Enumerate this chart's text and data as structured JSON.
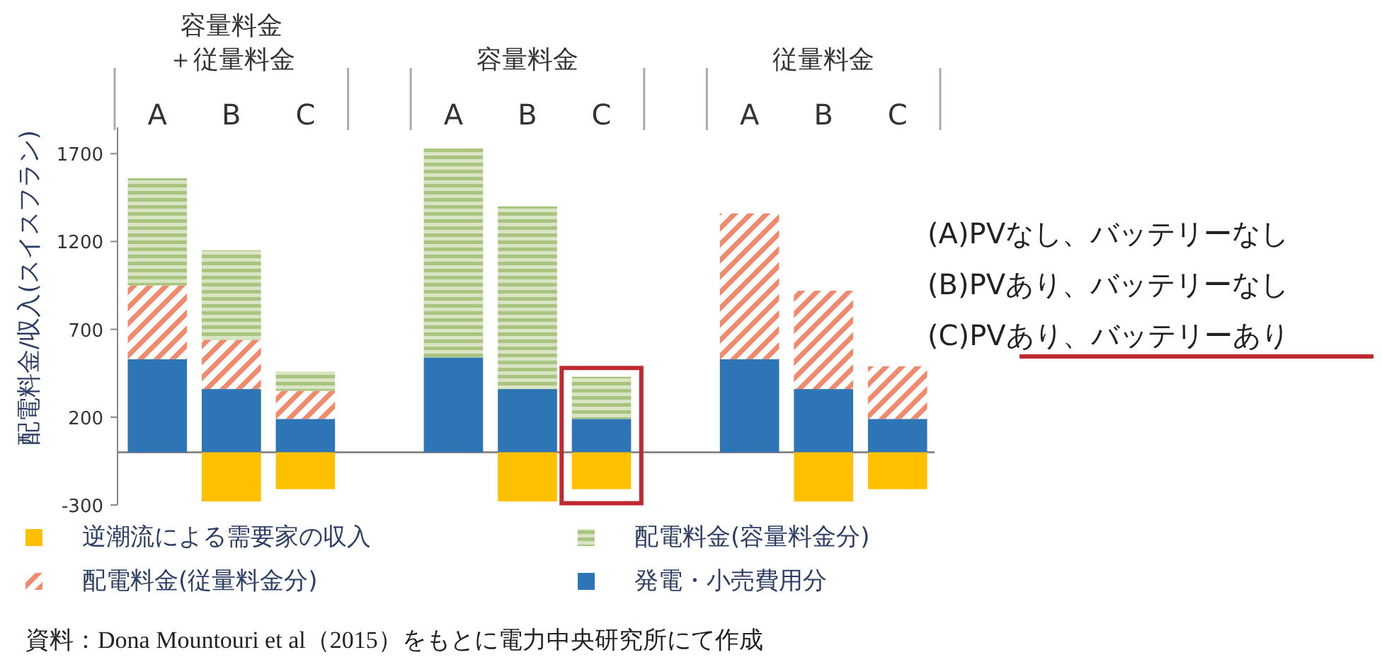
{
  "chart_data": {
    "type": "bar",
    "stacked": true,
    "ylabel": "配電料金/収入(スイスフラン)",
    "categories": [
      "A",
      "B",
      "C",
      null,
      "A",
      "B",
      "C",
      null,
      "A",
      "B",
      "C"
    ],
    "series": [
      {
        "name": "発電・小売費用分",
        "color": "#2e75b6",
        "values": [
          530,
          360,
          190,
          null,
          540,
          360,
          190,
          null,
          530,
          360,
          190
        ]
      },
      {
        "name": "配電料金(従量料金分)",
        "color": "#f08a6c",
        "values": [
          420,
          280,
          160,
          null,
          null,
          null,
          null,
          null,
          830,
          560,
          300
        ]
      },
      {
        "name": "配電料金(容量料金分)",
        "color": "#a9c47f",
        "values": [
          610,
          510,
          110,
          null,
          1190,
          1040,
          240,
          null,
          null,
          null,
          null
        ]
      },
      {
        "name": "逆潮流による需要家の収入",
        "color": "#ffc000",
        "values": [
          null,
          -280,
          -210,
          null,
          null,
          -280,
          -210,
          null,
          null,
          -280,
          -210
        ]
      }
    ],
    "ylim": [
      -300,
      1850
    ],
    "yticks": [
      -300,
      200,
      700,
      1200,
      1700
    ],
    "legend": "bottom",
    "grid": false,
    "annotations": [
      "容量料金",
      "＋従量料金",
      "容量料金",
      "従量料金",
      "(A)PVなし、バッテリーなし",
      "(B)PVあり、バッテリーなし",
      "(C)PVあり、バッテリーあり",
      "資料：Dona Mountouri et al（2015）をもとに電力中央研究所にて作成"
    ]
  }
}
